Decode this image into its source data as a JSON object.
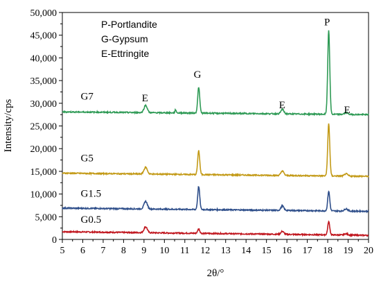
{
  "chart_data": {
    "type": "line",
    "xlabel": "2θ/°",
    "ylabel": "Intensity/cps",
    "xlim": [
      5,
      20
    ],
    "ylim": [
      0,
      50000
    ],
    "x_ticks": [
      5,
      6,
      7,
      8,
      9,
      10,
      11,
      12,
      13,
      14,
      15,
      16,
      17,
      18,
      19,
      20
    ],
    "x_tick_labels": [
      "5",
      "6",
      "7",
      "8",
      "9",
      "10",
      "11",
      "12",
      "13",
      "14",
      "15",
      "16",
      "17",
      "18",
      "19",
      "20"
    ],
    "y_ticks": [
      0,
      5000,
      10000,
      15000,
      20000,
      25000,
      30000,
      35000,
      40000,
      45000,
      50000
    ],
    "y_tick_labels": [
      "0",
      "5,000",
      "10,000",
      "15,000",
      "20,000",
      "25,000",
      "30,000",
      "35,000",
      "40,000",
      "45,000",
      "50,000"
    ],
    "legend_lines": [
      "P-Portlandite",
      "G-Gypsum",
      "E-Ettringite"
    ],
    "legend_placement": "top-left",
    "grid": false,
    "series": [
      {
        "name": "G0.5",
        "color": "#c0161e",
        "baseline_start": 1700,
        "baseline_end": 900,
        "peaks": [
          {
            "x": 9.08,
            "height": 1300,
            "width": 0.08
          },
          {
            "x": 11.68,
            "height": 1000,
            "width": 0.05
          },
          {
            "x": 15.78,
            "height": 650,
            "width": 0.07
          },
          {
            "x": 18.05,
            "height": 2900,
            "width": 0.05
          },
          {
            "x": 18.9,
            "height": 300,
            "width": 0.08
          }
        ]
      },
      {
        "name": "G1.5",
        "color": "#2e4e8a",
        "baseline_start": 6900,
        "baseline_end": 6200,
        "peaks": [
          {
            "x": 9.08,
            "height": 1700,
            "width": 0.08
          },
          {
            "x": 11.68,
            "height": 5100,
            "width": 0.05
          },
          {
            "x": 15.78,
            "height": 1000,
            "width": 0.07
          },
          {
            "x": 18.05,
            "height": 4300,
            "width": 0.05
          },
          {
            "x": 18.9,
            "height": 500,
            "width": 0.08
          }
        ]
      },
      {
        "name": "G5",
        "color": "#c39a17",
        "baseline_start": 14600,
        "baseline_end": 13900,
        "peaks": [
          {
            "x": 9.08,
            "height": 1500,
            "width": 0.08
          },
          {
            "x": 11.68,
            "height": 5300,
            "width": 0.05
          },
          {
            "x": 15.78,
            "height": 1000,
            "width": 0.07
          },
          {
            "x": 18.05,
            "height": 11500,
            "width": 0.05
          },
          {
            "x": 18.9,
            "height": 500,
            "width": 0.08
          }
        ]
      },
      {
        "name": "G7",
        "color": "#2e9a55",
        "baseline_start": 28100,
        "baseline_end": 27500,
        "peaks": [
          {
            "x": 9.08,
            "height": 1600,
            "width": 0.08
          },
          {
            "x": 10.55,
            "height": 700,
            "width": 0.03
          },
          {
            "x": 11.68,
            "height": 5700,
            "width": 0.05
          },
          {
            "x": 15.78,
            "height": 1000,
            "width": 0.07
          },
          {
            "x": 18.05,
            "height": 18500,
            "width": 0.05
          },
          {
            "x": 18.9,
            "height": 400,
            "width": 0.08
          }
        ]
      }
    ],
    "series_labels": [
      {
        "text": "G7",
        "x": 5.9,
        "y": 30800
      },
      {
        "text": "G5",
        "x": 5.9,
        "y": 17200
      },
      {
        "text": "G1.5",
        "x": 5.9,
        "y": 9400
      },
      {
        "text": "G0.5",
        "x": 5.9,
        "y": 3700
      }
    ],
    "peak_labels": [
      {
        "text": "E",
        "x": 9.05,
        "y": 30400
      },
      {
        "text": "G",
        "x": 11.62,
        "y": 35600
      },
      {
        "text": "E",
        "x": 15.77,
        "y": 28900
      },
      {
        "text": "P",
        "x": 17.97,
        "y": 47200
      },
      {
        "text": "E",
        "x": 18.95,
        "y": 27800
      }
    ]
  }
}
